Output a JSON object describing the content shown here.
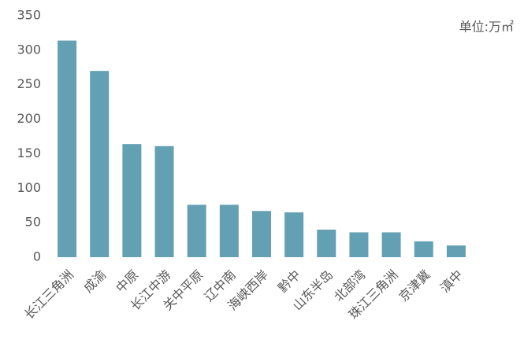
{
  "chart_data": {
    "type": "bar",
    "annotation": "单位:万㎡",
    "categories": [
      "长江三角洲",
      "成渝",
      "中原",
      "长江中游",
      "关中平原",
      "辽中南",
      "海峡西岸",
      "黔中",
      "山东半岛",
      "北部湾",
      "珠江三角洲",
      "京津冀",
      "滇中"
    ],
    "values": [
      314,
      270,
      164,
      161,
      76,
      76,
      67,
      65,
      40,
      36,
      36,
      23,
      17
    ],
    "color": "#64a0b4",
    "ylim": [
      0,
      350
    ],
    "yticks": [
      0,
      50,
      100,
      150,
      200,
      250,
      300,
      350
    ],
    "grid": false
  }
}
